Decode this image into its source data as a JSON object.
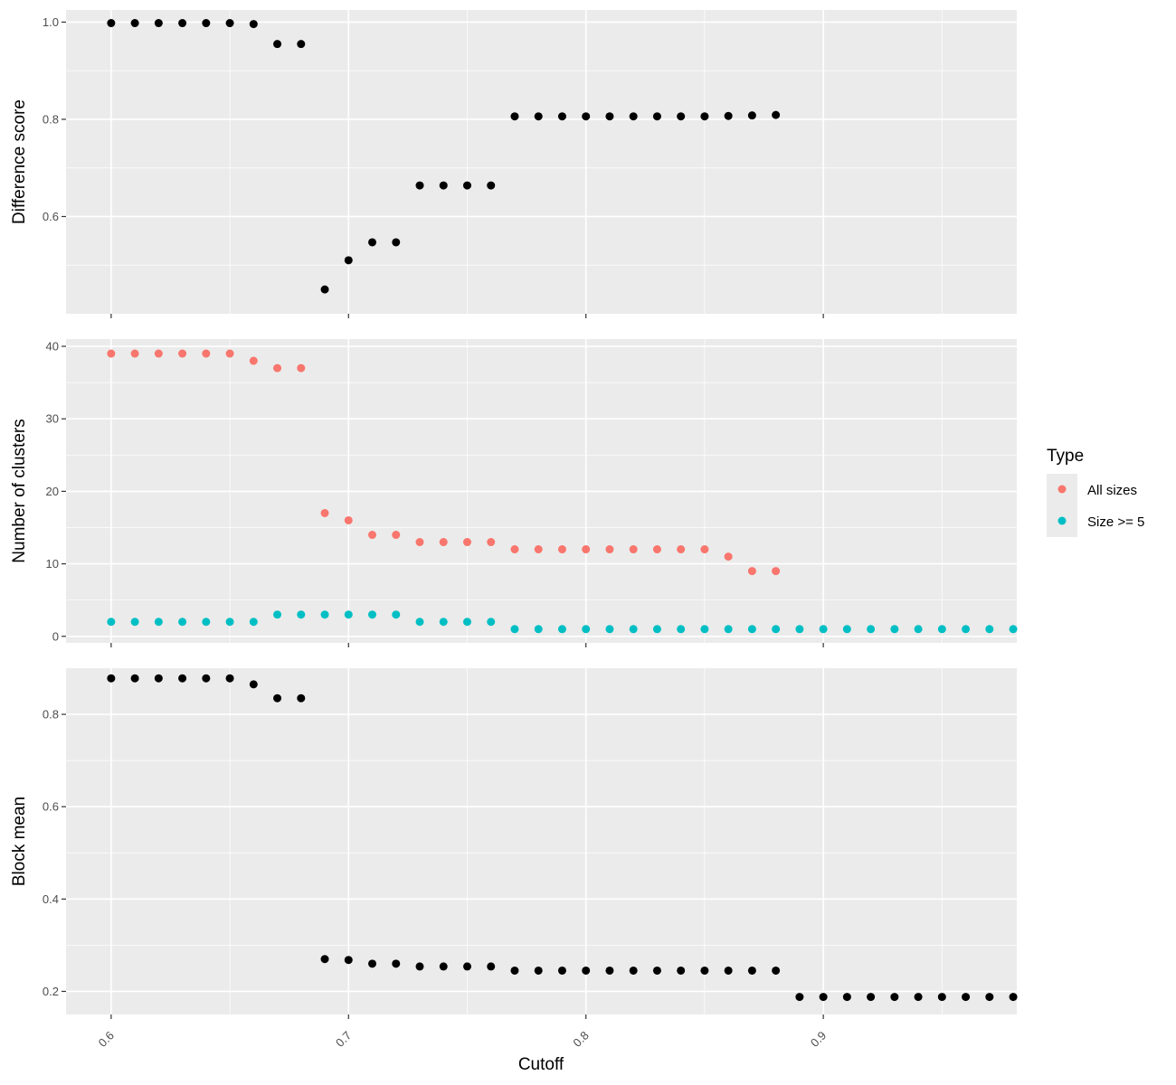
{
  "chart_data": {
    "type": "scatter",
    "xlabel": "Cutoff",
    "x_ticks": [
      0.6,
      0.7,
      0.8,
      0.9
    ],
    "x_tick_labels": [
      "0.6",
      "0.7",
      "0.8",
      "0.9"
    ],
    "xlim": [
      0.581,
      0.9815
    ],
    "grid": true,
    "legend": {
      "title": "Type",
      "placement": "right",
      "entries": [
        {
          "name": "All sizes",
          "color": "#F8766D"
        },
        {
          "name": "Size >= 5",
          "color": "#00BFC4"
        }
      ]
    },
    "panels": [
      {
        "ylabel": "Difference score",
        "ylim": [
          0.4,
          1.025
        ],
        "y_ticks": [
          0.6,
          0.8,
          1.0
        ],
        "y_tick_labels": [
          "0.6",
          "0.8",
          "1.0"
        ],
        "series": [
          {
            "color": "#000000",
            "x": [
              0.6,
              0.61,
              0.62,
              0.63,
              0.64,
              0.65,
              0.66,
              0.67,
              0.68,
              0.69,
              0.7,
              0.71,
              0.72,
              0.73,
              0.74,
              0.75,
              0.76,
              0.77,
              0.78,
              0.79,
              0.8,
              0.81,
              0.82,
              0.83,
              0.84,
              0.85,
              0.86,
              0.87,
              0.88
            ],
            "values": [
              0.998,
              0.998,
              0.998,
              0.998,
              0.998,
              0.998,
              0.996,
              0.955,
              0.955,
              0.45,
              0.51,
              0.547,
              0.547,
              0.664,
              0.664,
              0.664,
              0.664,
              0.806,
              0.806,
              0.806,
              0.806,
              0.806,
              0.806,
              0.806,
              0.806,
              0.806,
              0.807,
              0.808,
              0.809
            ]
          }
        ]
      },
      {
        "ylabel": "Number of clusters",
        "ylim": [
          -0.9,
          41
        ],
        "y_ticks": [
          0,
          10,
          20,
          30,
          40
        ],
        "y_tick_labels": [
          "0",
          "10",
          "20",
          "30",
          "40"
        ],
        "series": [
          {
            "name": "All sizes",
            "color": "#F8766D",
            "x": [
              0.6,
              0.61,
              0.62,
              0.63,
              0.64,
              0.65,
              0.66,
              0.67,
              0.68,
              0.69,
              0.7,
              0.71,
              0.72,
              0.73,
              0.74,
              0.75,
              0.76,
              0.77,
              0.78,
              0.79,
              0.8,
              0.81,
              0.82,
              0.83,
              0.84,
              0.85,
              0.86,
              0.87,
              0.88
            ],
            "values": [
              39,
              39,
              39,
              39,
              39,
              39,
              38,
              37,
              37,
              17,
              16,
              14,
              14,
              13,
              13,
              13,
              13,
              12,
              12,
              12,
              12,
              12,
              12,
              12,
              12,
              12,
              11,
              9,
              9
            ]
          },
          {
            "name": "Size >= 5",
            "color": "#00BFC4",
            "x": [
              0.6,
              0.61,
              0.62,
              0.63,
              0.64,
              0.65,
              0.66,
              0.67,
              0.68,
              0.69,
              0.7,
              0.71,
              0.72,
              0.73,
              0.74,
              0.75,
              0.76,
              0.77,
              0.78,
              0.79,
              0.8,
              0.81,
              0.82,
              0.83,
              0.84,
              0.85,
              0.86,
              0.87,
              0.88,
              0.89,
              0.9,
              0.91,
              0.92,
              0.93,
              0.94,
              0.95,
              0.96,
              0.97,
              0.98
            ],
            "values": [
              2,
              2,
              2,
              2,
              2,
              2,
              2,
              3,
              3,
              3,
              3,
              3,
              3,
              2,
              2,
              2,
              2,
              1,
              1,
              1,
              1,
              1,
              1,
              1,
              1,
              1,
              1,
              1,
              1,
              1,
              1,
              1,
              1,
              1,
              1,
              1,
              1,
              1,
              1
            ]
          }
        ]
      },
      {
        "ylabel": "Block mean",
        "ylim": [
          0.15,
          0.9
        ],
        "y_ticks": [
          0.2,
          0.4,
          0.6,
          0.8
        ],
        "y_tick_labels": [
          "0.2",
          "0.4",
          "0.6",
          "0.8"
        ],
        "series": [
          {
            "color": "#000000",
            "x": [
              0.6,
              0.61,
              0.62,
              0.63,
              0.64,
              0.65,
              0.66,
              0.67,
              0.68,
              0.69,
              0.7,
              0.71,
              0.72,
              0.73,
              0.74,
              0.75,
              0.76,
              0.77,
              0.78,
              0.79,
              0.8,
              0.81,
              0.82,
              0.83,
              0.84,
              0.85,
              0.86,
              0.87,
              0.88,
              0.89,
              0.9,
              0.91,
              0.92,
              0.93,
              0.94,
              0.95,
              0.96,
              0.97,
              0.98
            ],
            "values": [
              0.878,
              0.878,
              0.878,
              0.878,
              0.878,
              0.878,
              0.865,
              0.835,
              0.835,
              0.27,
              0.268,
              0.26,
              0.26,
              0.254,
              0.254,
              0.254,
              0.254,
              0.245,
              0.245,
              0.245,
              0.245,
              0.245,
              0.245,
              0.245,
              0.245,
              0.245,
              0.245,
              0.245,
              0.245,
              0.188,
              0.188,
              0.188,
              0.188,
              0.188,
              0.188,
              0.188,
              0.188,
              0.188,
              0.188
            ]
          }
        ]
      }
    ]
  }
}
